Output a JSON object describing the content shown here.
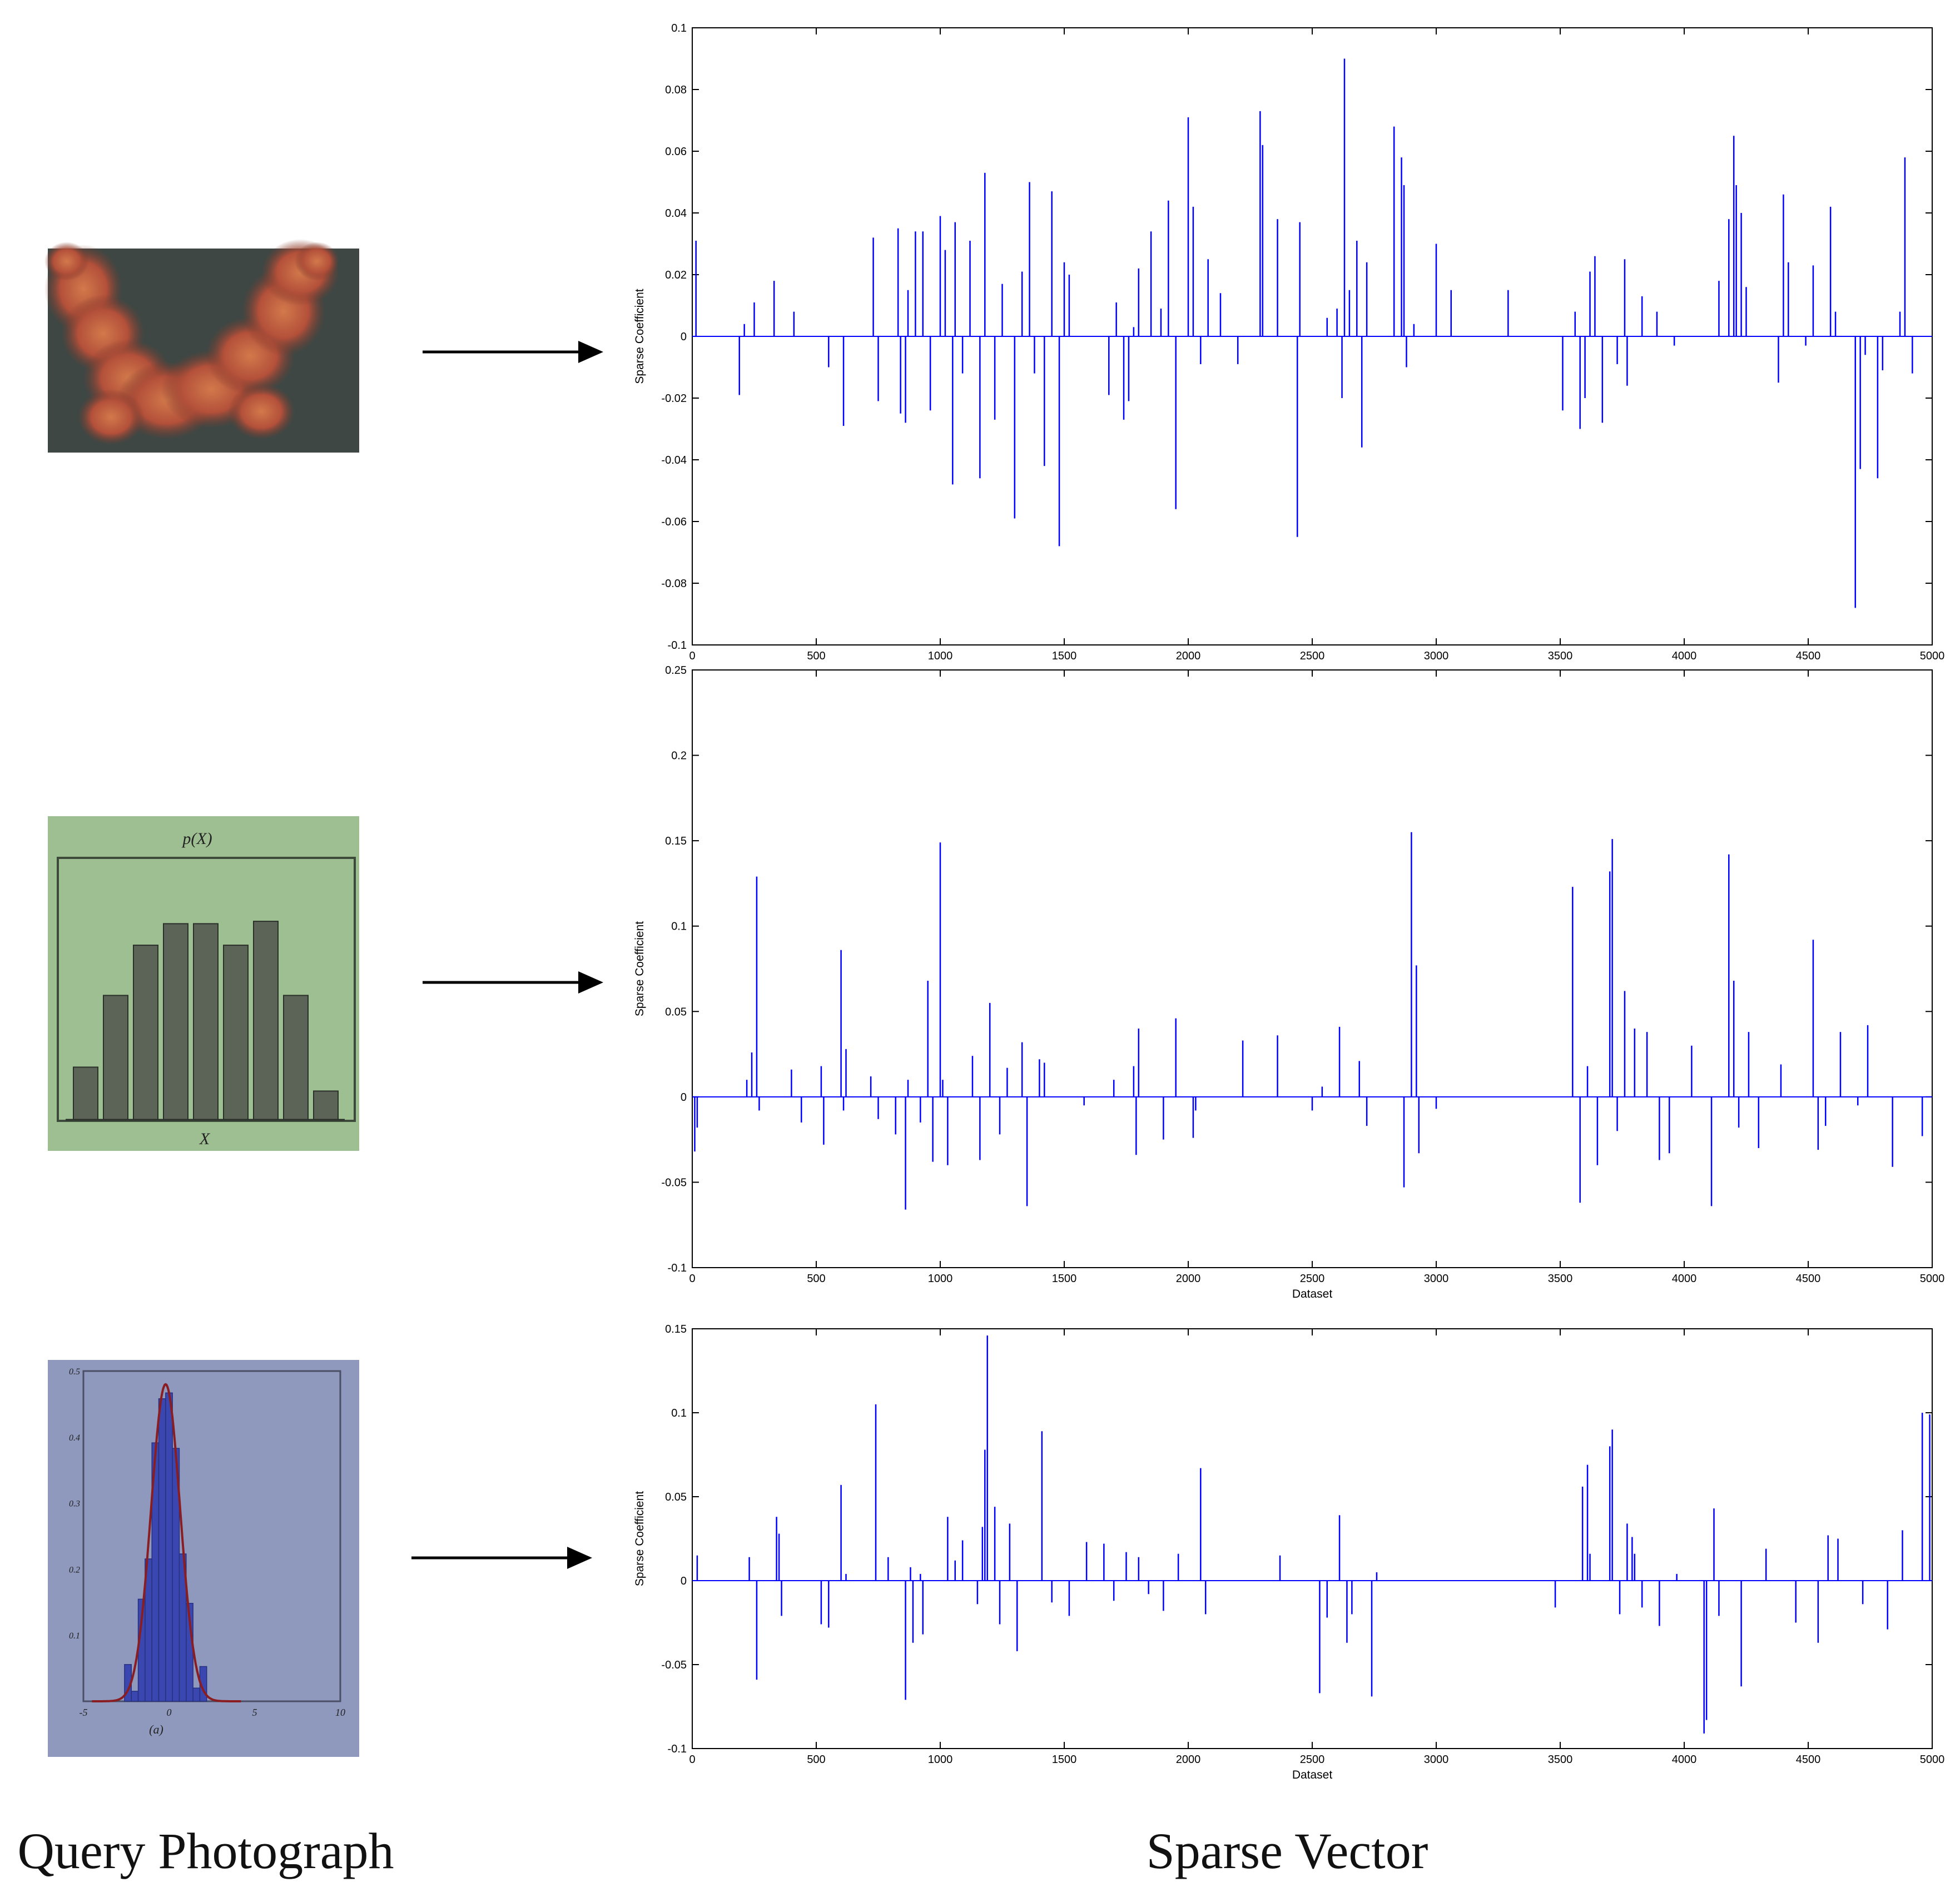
{
  "captions": {
    "left": "Query Photograph",
    "right": "Sparse Vector"
  },
  "photos": [
    {
      "name": "coral",
      "description_colors": {
        "bg": "#3f4744",
        "fg": "#b35a3e"
      }
    },
    {
      "name": "bar-histogram",
      "top_label": "p(X)",
      "bottom_label": "X",
      "bar_values": [
        0.22,
        0.52,
        0.73,
        0.82,
        0.82,
        0.73,
        0.83,
        0.52,
        0.12
      ],
      "colors": {
        "bg": "#9ebf91",
        "bar": "#5c6458"
      }
    },
    {
      "name": "gaussian-histogram",
      "xlabel": "(a)",
      "xticks": [
        "-5",
        "0",
        "5",
        "10"
      ],
      "yticks": [
        "0.5",
        "0.4",
        "0.3",
        "0.2",
        "0.1"
      ],
      "colors": {
        "bg": "#8f99bd",
        "bar": "#3a47b0",
        "curve": "#8a1d22"
      }
    }
  ],
  "chart_data": [
    {
      "type": "bar",
      "ylabel": "Sparse Coefficient",
      "xlabel": "",
      "xlim": [
        0,
        5000
      ],
      "ylim": [
        -0.1,
        0.1
      ],
      "xticks": [
        0,
        500,
        1000,
        1500,
        2000,
        2500,
        3000,
        3500,
        4000,
        4500,
        5000
      ],
      "yticks": [
        -0.1,
        -0.08,
        -0.06,
        -0.04,
        -0.02,
        0,
        0.02,
        0.04,
        0.06,
        0.08,
        0.1
      ],
      "ytick_labels": [
        "-0.1",
        "-0.08",
        "-0.06",
        "-0.04",
        "-0.02",
        "0",
        "0.02",
        "0.04",
        "0.06",
        "0.08",
        "0.1"
      ],
      "color": "#0000ff",
      "x": [
        15,
        190,
        210,
        250,
        330,
        410,
        550,
        610,
        730,
        750,
        830,
        840,
        860,
        870,
        900,
        930,
        960,
        1000,
        1020,
        1050,
        1060,
        1090,
        1120,
        1160,
        1180,
        1220,
        1250,
        1300,
        1330,
        1360,
        1380,
        1420,
        1450,
        1480,
        1500,
        1520,
        1680,
        1710,
        1740,
        1760,
        1780,
        1800,
        1850,
        1890,
        1920,
        1950,
        2000,
        2020,
        2050,
        2080,
        2130,
        2200,
        2290,
        2300,
        2360,
        2440,
        2450,
        2560,
        2600,
        2620,
        2630,
        2650,
        2680,
        2700,
        2720,
        2830,
        2860,
        2870,
        2880,
        2910,
        3000,
        3060,
        3290,
        3510,
        3560,
        3580,
        3600,
        3620,
        3640,
        3670,
        3730,
        3760,
        3770,
        3830,
        3890,
        3960,
        4140,
        4180,
        4200,
        4210,
        4230,
        4250,
        4380,
        4400,
        4420,
        4490,
        4520,
        4590,
        4610,
        4690,
        4710,
        4730,
        4780,
        4800,
        4870,
        4890,
        4920
      ],
      "values": [
        0.031,
        -0.019,
        0.004,
        0.011,
        0.018,
        0.008,
        -0.01,
        -0.029,
        0.032,
        -0.021,
        0.035,
        -0.025,
        -0.028,
        0.015,
        0.034,
        0.034,
        -0.024,
        0.039,
        0.028,
        -0.048,
        0.037,
        -0.012,
        0.031,
        -0.046,
        0.053,
        -0.027,
        0.017,
        -0.059,
        0.021,
        0.05,
        -0.012,
        -0.042,
        0.047,
        -0.068,
        0.024,
        0.02,
        -0.019,
        0.011,
        -0.027,
        -0.021,
        0.003,
        0.022,
        0.034,
        0.009,
        0.044,
        -0.056,
        0.071,
        0.042,
        -0.009,
        0.025,
        0.014,
        -0.009,
        0.073,
        0.062,
        0.038,
        -0.065,
        0.037,
        0.006,
        0.009,
        -0.02,
        0.09,
        0.015,
        0.031,
        -0.036,
        0.024,
        0.068,
        0.058,
        0.049,
        -0.01,
        0.004,
        0.03,
        0.015,
        0.015,
        -0.024,
        0.008,
        -0.03,
        -0.02,
        0.021,
        0.026,
        -0.028,
        -0.009,
        0.025,
        -0.016,
        0.013,
        0.008,
        -0.003,
        0.018,
        0.038,
        0.065,
        0.049,
        0.04,
        0.016,
        -0.015,
        0.046,
        0.024,
        -0.003,
        0.023,
        0.042,
        0.008,
        -0.088,
        -0.043,
        -0.006,
        -0.046,
        -0.011,
        0.008,
        0.058,
        -0.012
      ]
    },
    {
      "type": "bar",
      "ylabel": "Sparse Coefficient",
      "xlabel": "Dataset",
      "xlim": [
        0,
        5000
      ],
      "ylim": [
        -0.1,
        0.25
      ],
      "xticks": [
        0,
        500,
        1000,
        1500,
        2000,
        2500,
        3000,
        3500,
        4000,
        4500,
        5000
      ],
      "yticks": [
        -0.1,
        -0.05,
        0,
        0.05,
        0.1,
        0.15,
        0.2,
        0.25
      ],
      "ytick_labels": [
        "-0.1",
        "-0.05",
        "0",
        "0.05",
        "0.1",
        "0.15",
        "0.2",
        "0.25"
      ],
      "color": "#0000ff",
      "x": [
        10,
        20,
        220,
        240,
        260,
        270,
        400,
        440,
        520,
        530,
        600,
        610,
        620,
        720,
        750,
        820,
        860,
        870,
        920,
        950,
        970,
        1000,
        1010,
        1030,
        1130,
        1160,
        1200,
        1240,
        1270,
        1330,
        1350,
        1400,
        1420,
        1580,
        1700,
        1780,
        1790,
        1800,
        1900,
        1950,
        2020,
        2030,
        2220,
        2360,
        2500,
        2540,
        2610,
        2690,
        2720,
        2870,
        2900,
        2920,
        2930,
        3000,
        3550,
        3580,
        3610,
        3650,
        3700,
        3710,
        3730,
        3760,
        3800,
        3850,
        3900,
        3940,
        4030,
        4110,
        4180,
        4200,
        4220,
        4260,
        4300,
        4390,
        4520,
        4540,
        4570,
        4630,
        4700,
        4740,
        4840,
        4960
      ],
      "values": [
        -0.032,
        -0.018,
        0.01,
        0.026,
        0.129,
        -0.008,
        0.016,
        -0.015,
        0.018,
        -0.028,
        0.086,
        -0.008,
        0.028,
        0.012,
        -0.013,
        -0.022,
        -0.066,
        0.01,
        -0.015,
        0.068,
        -0.038,
        0.149,
        0.01,
        -0.04,
        0.024,
        -0.037,
        0.055,
        -0.022,
        0.017,
        0.032,
        -0.064,
        0.022,
        0.02,
        -0.005,
        0.01,
        0.018,
        -0.034,
        0.04,
        -0.025,
        0.046,
        -0.024,
        -0.008,
        0.033,
        0.036,
        -0.008,
        0.006,
        0.041,
        0.021,
        -0.017,
        -0.053,
        0.155,
        0.077,
        -0.033,
        -0.007,
        0.123,
        -0.062,
        0.018,
        -0.04,
        0.132,
        0.151,
        -0.02,
        0.062,
        0.04,
        0.038,
        -0.037,
        -0.033,
        0.03,
        -0.064,
        0.142,
        0.068,
        -0.018,
        0.038,
        -0.03,
        0.019,
        0.092,
        -0.031,
        -0.017,
        0.038,
        -0.005,
        0.042,
        -0.041,
        -0.023
      ]
    },
    {
      "type": "bar",
      "ylabel": "Sparse Coefficient",
      "xlabel": "Dataset",
      "xlim": [
        0,
        5000
      ],
      "ylim": [
        -0.1,
        0.15
      ],
      "xticks": [
        0,
        500,
        1000,
        1500,
        2000,
        2500,
        3000,
        3500,
        4000,
        4500,
        5000
      ],
      "yticks": [
        -0.1,
        -0.05,
        0,
        0.05,
        0.1,
        0.15
      ],
      "ytick_labels": [
        "-0.1",
        "-0.05",
        "0",
        "0.05",
        "0.1",
        "0.15"
      ],
      "color": "#0000ff",
      "x": [
        20,
        230,
        260,
        340,
        350,
        360,
        520,
        550,
        600,
        620,
        740,
        790,
        860,
        880,
        890,
        920,
        930,
        1030,
        1060,
        1090,
        1150,
        1170,
        1180,
        1190,
        1220,
        1240,
        1280,
        1310,
        1410,
        1450,
        1520,
        1590,
        1660,
        1700,
        1750,
        1800,
        1840,
        1900,
        1960,
        2050,
        2070,
        2370,
        2530,
        2560,
        2610,
        2640,
        2660,
        2740,
        2760,
        3480,
        3590,
        3610,
        3620,
        3700,
        3710,
        3740,
        3770,
        3790,
        3800,
        3830,
        3900,
        3970,
        4080,
        4090,
        4120,
        4140,
        4230,
        4330,
        4450,
        4540,
        4580,
        4620,
        4720,
        4820,
        4880,
        4960,
        4990
      ],
      "values": [
        0.015,
        0.014,
        -0.059,
        0.038,
        0.028,
        -0.021,
        -0.026,
        -0.028,
        0.057,
        0.004,
        0.105,
        0.014,
        -0.071,
        0.008,
        -0.037,
        0.004,
        -0.032,
        0.038,
        0.012,
        0.024,
        -0.014,
        0.032,
        0.078,
        0.146,
        0.044,
        -0.026,
        0.034,
        -0.042,
        0.089,
        -0.013,
        -0.021,
        0.023,
        0.022,
        -0.012,
        0.017,
        0.014,
        -0.008,
        -0.018,
        0.016,
        0.067,
        -0.02,
        0.015,
        -0.067,
        -0.022,
        0.039,
        -0.037,
        -0.02,
        -0.069,
        0.005,
        -0.016,
        0.056,
        0.069,
        0.016,
        0.08,
        0.09,
        -0.02,
        0.034,
        0.026,
        0.016,
        -0.016,
        -0.027,
        0.004,
        -0.091,
        -0.083,
        0.043,
        -0.021,
        -0.063,
        0.019,
        -0.025,
        -0.037,
        0.027,
        0.025,
        -0.014,
        -0.029,
        0.03,
        0.1,
        0.099
      ]
    }
  ]
}
